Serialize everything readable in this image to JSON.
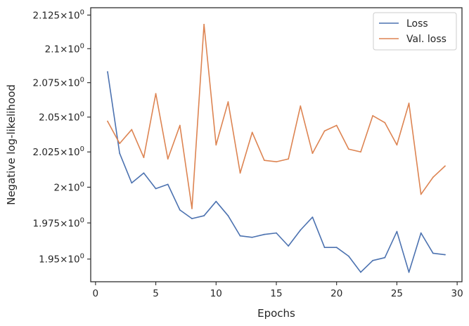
{
  "chart_data": {
    "type": "line",
    "xlabel": "Epochs",
    "ylabel": "Negative log-likelihood",
    "xlim": [
      -0.4,
      30.4
    ],
    "ylim": [
      1.9345,
      2.1305
    ],
    "yscale": "log",
    "grid": false,
    "legend_position": "top-right",
    "x_ticks": [
      {
        "value": 0,
        "label": "0"
      },
      {
        "value": 5,
        "label": "5"
      },
      {
        "value": 10,
        "label": "10"
      },
      {
        "value": 15,
        "label": "15"
      },
      {
        "value": 20,
        "label": "20"
      },
      {
        "value": 25,
        "label": "25"
      },
      {
        "value": 30,
        "label": "30"
      }
    ],
    "y_ticks": [
      {
        "value": 1.95,
        "mantissa": "1.95"
      },
      {
        "value": 1.975,
        "mantissa": "1.975"
      },
      {
        "value": 2.0,
        "mantissa": "2"
      },
      {
        "value": 2.025,
        "mantissa": "2.025"
      },
      {
        "value": 2.05,
        "mantissa": "2.05"
      },
      {
        "value": 2.075,
        "mantissa": "2.075"
      },
      {
        "value": 2.1,
        "mantissa": "2.1"
      },
      {
        "value": 2.125,
        "mantissa": "2.125"
      }
    ],
    "tick_suffix": "×10",
    "tick_exponent": "0",
    "x": [
      1,
      2,
      3,
      4,
      5,
      6,
      7,
      8,
      9,
      10,
      11,
      12,
      13,
      14,
      15,
      16,
      17,
      18,
      19,
      20,
      21,
      22,
      23,
      24,
      25,
      26,
      27,
      28,
      29
    ],
    "series": [
      {
        "name": "Loss",
        "color": "#4c72b0",
        "values": [
          2.083,
          2.024,
          2.003,
          2.01,
          1.999,
          2.002,
          1.984,
          1.978,
          1.98,
          1.99,
          1.98,
          1.966,
          1.965,
          1.967,
          1.968,
          1.959,
          1.97,
          1.979,
          1.958,
          1.958,
          1.952,
          1.941,
          1.949,
          1.951,
          1.969,
          1.941,
          1.968,
          1.954,
          1.953
        ]
      },
      {
        "name": "Val. loss",
        "color": "#dd8452",
        "values": [
          2.047,
          2.031,
          2.041,
          2.021,
          2.067,
          2.02,
          2.044,
          1.985,
          2.118,
          2.03,
          2.061,
          2.01,
          2.039,
          2.019,
          2.018,
          2.02,
          2.058,
          2.024,
          2.04,
          2.044,
          2.027,
          2.025,
          2.051,
          2.046,
          2.03,
          2.06,
          1.995,
          2.007,
          2.015
        ]
      }
    ]
  }
}
